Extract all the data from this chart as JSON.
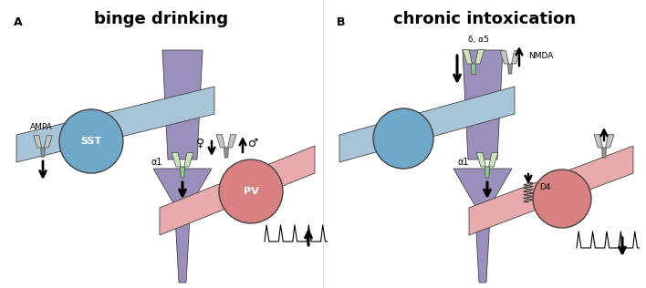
{
  "title_A": "binge drinking",
  "title_B": "chronic intoxication",
  "label_A": "A",
  "label_B": "B",
  "bg_color": "#ffffff",
  "dendrite_color": "#9b8fbd",
  "sst_axon_color": "#a8c4d8",
  "pv_axon_color": "#e8aaaa",
  "sst_circle_color": "#6fa8c8",
  "pv_circle_color": "#d98080",
  "gabar_color_light": "#c8e6b8",
  "gabar_color_dark": "#8cc888",
  "receptor_gray_light": "#c0c8c0",
  "receptor_gray_dark": "#909890",
  "outline_color": "#444444",
  "arrow_color": "#000000",
  "text_color": "#000000"
}
